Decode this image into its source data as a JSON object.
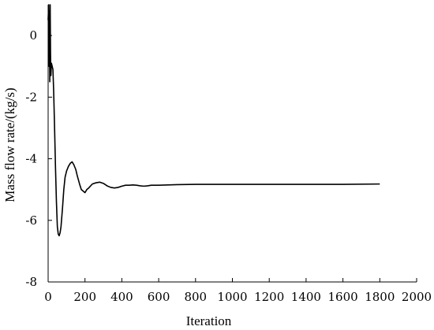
{
  "chart_data": {
    "type": "line",
    "title": "",
    "xlabel": "Iteration",
    "ylabel": "Mass flow rate/(kg/s)",
    "xlim": [
      0,
      2000
    ],
    "ylim": [
      -8,
      1
    ],
    "xticks": [
      0,
      200,
      400,
      600,
      800,
      1000,
      1200,
      1400,
      1600,
      1800,
      2000
    ],
    "yticks": [
      0,
      -2,
      -4,
      -6,
      -8
    ],
    "grid": false,
    "series_color": "#000000",
    "series": [
      {
        "x": [
          0,
          3,
          5,
          7,
          9,
          11,
          13,
          15,
          18,
          22,
          26,
          30,
          35,
          40,
          45,
          50,
          55,
          60,
          65,
          70,
          78,
          85,
          92,
          100,
          110,
          120,
          130,
          140,
          150,
          158,
          165,
          172,
          180,
          190,
          200,
          210,
          220,
          240,
          260,
          280,
          300,
          320,
          340,
          360,
          380,
          400,
          420,
          440,
          460,
          480,
          500,
          520,
          540,
          560,
          600,
          650,
          700,
          800,
          1000,
          1200,
          1400,
          1600,
          1800
        ],
        "y": [
          0.5,
          1.0,
          -1.0,
          0.8,
          -1.5,
          1.0,
          -0.6,
          -1.3,
          -0.9,
          -1.0,
          -1.1,
          -1.8,
          -3.0,
          -4.3,
          -5.4,
          -6.2,
          -6.45,
          -6.5,
          -6.4,
          -6.2,
          -5.6,
          -5.0,
          -4.6,
          -4.4,
          -4.25,
          -4.15,
          -4.1,
          -4.2,
          -4.35,
          -4.55,
          -4.7,
          -4.85,
          -5.0,
          -5.05,
          -5.1,
          -5.0,
          -4.95,
          -4.82,
          -4.78,
          -4.76,
          -4.8,
          -4.88,
          -4.93,
          -4.95,
          -4.93,
          -4.89,
          -4.86,
          -4.86,
          -4.85,
          -4.86,
          -4.88,
          -4.89,
          -4.88,
          -4.86,
          -4.86,
          -4.85,
          -4.84,
          -4.83,
          -4.83,
          -4.83,
          -4.83,
          -4.83,
          -4.82
        ]
      }
    ]
  }
}
